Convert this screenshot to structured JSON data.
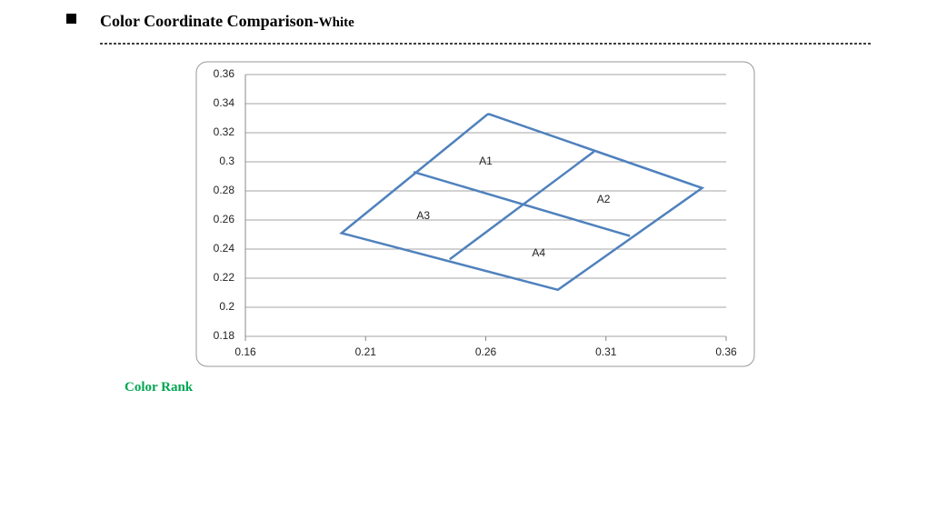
{
  "header": {
    "title": "Color Coordinate Comparison-",
    "title_suffix": "White"
  },
  "chart_data": {
    "type": "line",
    "series": [
      {
        "color": "#4f81bd",
        "x": [
          0.261,
          0.35,
          0.29,
          0.2,
          0.261
        ],
        "values": [
          0.333,
          0.282,
          0.212,
          0.251,
          0.333
        ]
      },
      {
        "color": "#4f81bd",
        "x": [
          0.23,
          0.32
        ],
        "values": [
          0.293,
          0.249
        ]
      },
      {
        "color": "#4f81bd",
        "x": [
          0.305,
          0.245
        ],
        "values": [
          0.307,
          0.233
        ]
      }
    ],
    "annotations": [
      {
        "text": "A1",
        "x": 0.26,
        "y": 0.3
      },
      {
        "text": "A2",
        "x": 0.309,
        "y": 0.274
      },
      {
        "text": "A3",
        "x": 0.234,
        "y": 0.2625
      },
      {
        "text": "A4",
        "x": 0.282,
        "y": 0.237
      }
    ],
    "xlim": [
      0.16,
      0.36
    ],
    "xticks": [
      0.16,
      0.21,
      0.26,
      0.31,
      0.36
    ],
    "ylim": [
      0.18,
      0.36
    ],
    "yticks": [
      0.18,
      0.2,
      0.22,
      0.24,
      0.26,
      0.28,
      0.3,
      0.32,
      0.34,
      0.36
    ],
    "grid": true
  },
  "footer": {
    "label": "Color Rank"
  }
}
